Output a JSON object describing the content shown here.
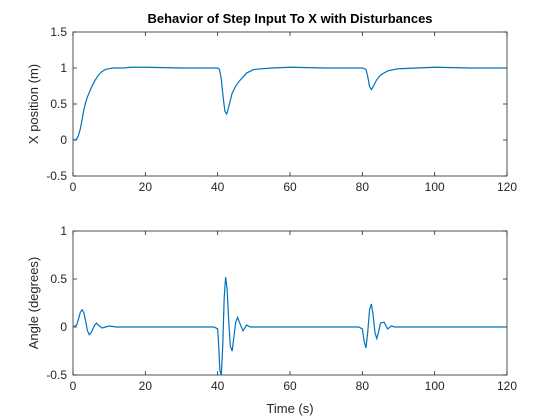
{
  "chart_data": [
    {
      "type": "line",
      "title": "Behavior of Step Input To X with Disturbances",
      "xlabel": "",
      "ylabel": "X position (m)",
      "xlim": [
        0,
        120
      ],
      "ylim": [
        -0.5,
        1.5
      ],
      "xticks": [
        0,
        20,
        40,
        60,
        80,
        100,
        120
      ],
      "yticks": [
        -0.5,
        0,
        0.5,
        1,
        1.5
      ],
      "xtick_labels": [
        "0",
        "20",
        "40",
        "60",
        "80",
        100,
        120
      ],
      "ytick_labels": [
        "-0.5",
        "0",
        "0.5",
        "1",
        "1.5"
      ],
      "grid": false,
      "line_color": "#0072BD",
      "series": [
        {
          "x": [
            0,
            1,
            1.5,
            2,
            2.5,
            3,
            3.5,
            4,
            5,
            6,
            7,
            8,
            9,
            10,
            11,
            12,
            14,
            16,
            20,
            30,
            39,
            40,
            40.5,
            41,
            41.5,
            42,
            42.5,
            43,
            44,
            45,
            46,
            48,
            50,
            55,
            60,
            70,
            79,
            80,
            81,
            81.5,
            82,
            82.5,
            83,
            84,
            85,
            87,
            90,
            95,
            100,
            110,
            120
          ],
          "y": [
            0,
            0.01,
            0.06,
            0.15,
            0.28,
            0.42,
            0.52,
            0.6,
            0.72,
            0.82,
            0.9,
            0.95,
            0.98,
            0.99,
            1.0,
            1.0,
            1.0,
            1.01,
            1.01,
            1.0,
            1.0,
            1.0,
            0.98,
            0.85,
            0.6,
            0.4,
            0.36,
            0.45,
            0.65,
            0.75,
            0.82,
            0.93,
            0.98,
            1.0,
            1.01,
            1.0,
            1.0,
            1.0,
            0.98,
            0.88,
            0.74,
            0.7,
            0.74,
            0.84,
            0.9,
            0.96,
            0.99,
            1.0,
            1.01,
            1.0,
            1.0
          ]
        }
      ]
    },
    {
      "type": "line",
      "title": "",
      "xlabel": "Time (s)",
      "ylabel": "Angle (degrees)",
      "xlim": [
        0,
        120
      ],
      "ylim": [
        -0.5,
        1
      ],
      "xticks": [
        0,
        20,
        40,
        60,
        80,
        100,
        120
      ],
      "yticks": [
        -0.5,
        0,
        0.5,
        1
      ],
      "xtick_labels": [
        "0",
        "20",
        "40",
        "60",
        "80",
        "100",
        "120"
      ],
      "ytick_labels": [
        "-0.5",
        "0",
        "0.5",
        "1"
      ],
      "grid": false,
      "line_color": "#0072BD",
      "series": [
        {
          "x": [
            0,
            1,
            1.5,
            2,
            2.5,
            3,
            3.5,
            4,
            4.5,
            5,
            5.5,
            6,
            6.5,
            7,
            8,
            9,
            10,
            12,
            20,
            30,
            39,
            40,
            40.3,
            40.6,
            41,
            41.4,
            41.8,
            42.2,
            42.6,
            43,
            43.5,
            44,
            44.5,
            45,
            45.5,
            46,
            47,
            48,
            49,
            50,
            55,
            60,
            70,
            79,
            80,
            80.5,
            81,
            81.5,
            82,
            82.5,
            83,
            83.5,
            84,
            84.5,
            85,
            86,
            87,
            88,
            89,
            90,
            100,
            110,
            120
          ],
          "y": [
            0,
            0.02,
            0.08,
            0.15,
            0.18,
            0.15,
            0.06,
            -0.04,
            -0.08,
            -0.06,
            -0.02,
            0.02,
            0.04,
            0.02,
            -0.01,
            0.0,
            0.01,
            0.0,
            0.0,
            0.0,
            0.0,
            -0.02,
            -0.2,
            -0.45,
            -0.5,
            -0.2,
            0.3,
            0.52,
            0.4,
            0.1,
            -0.2,
            -0.25,
            -0.1,
            0.05,
            0.1,
            0.05,
            -0.04,
            0.02,
            0.0,
            0.0,
            0.0,
            0.0,
            0.0,
            0.0,
            -0.02,
            -0.15,
            -0.22,
            -0.05,
            0.18,
            0.24,
            0.12,
            -0.06,
            -0.12,
            -0.05,
            0.04,
            0.05,
            -0.02,
            0.01,
            0.0,
            0.0,
            0.0,
            0.0,
            0.0
          ]
        }
      ]
    }
  ]
}
